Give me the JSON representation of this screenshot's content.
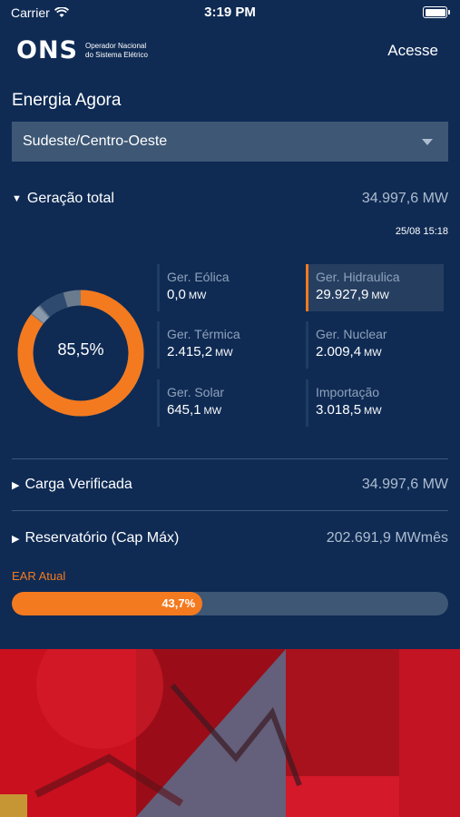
{
  "status_bar": {
    "carrier": "Carrier",
    "time": "3:19 PM"
  },
  "header": {
    "logo_mark": "ONS",
    "logo_text_1": "Operador Nacional",
    "logo_text_2": "do Sistema Elétrico",
    "access_label": "Acesse"
  },
  "page_title": "Energia Agora",
  "region_select": {
    "selected": "Sudeste/Centro-Oeste"
  },
  "generation": {
    "label": "Geração total",
    "total": "34.997,6 MW",
    "timestamp": "25/08 15:18",
    "donut_percent_label": "85,5%",
    "donut_percent": 85.5,
    "unit": "MW",
    "sources": [
      {
        "name": "Ger. Eólica",
        "value": "0,0",
        "active": false
      },
      {
        "name": "Ger. Hidraulica",
        "value": "29.927,9",
        "active": true
      },
      {
        "name": "Ger. Térmica",
        "value": "2.415,2",
        "active": false
      },
      {
        "name": "Ger. Nuclear",
        "value": "2.009,4",
        "active": false
      },
      {
        "name": "Ger. Solar",
        "value": "645,1",
        "active": false
      },
      {
        "name": "Importação",
        "value": "3.018,5",
        "active": false
      }
    ]
  },
  "load": {
    "label": "Carga Verificada",
    "value": "34.997,6 MW"
  },
  "reservoir": {
    "label": "Reservatório (Cap Máx)",
    "value": "202.691,9 MWmês"
  },
  "ear": {
    "label": "EAR Atual",
    "percent_label": "43,7%",
    "percent": 43.7
  },
  "colors": {
    "background": "#0f2b54",
    "accent": "#f47a1f",
    "panel": "#3d5775",
    "muted": "#aebdcf"
  }
}
